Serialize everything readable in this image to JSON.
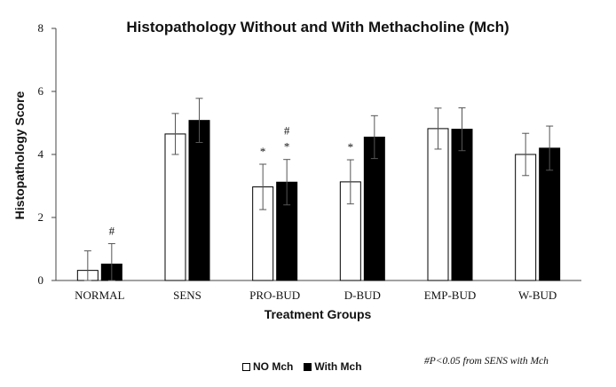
{
  "chart_data": {
    "type": "bar",
    "title": "Histopathology Without and With Methacholine (Mch)",
    "xlabel": "Treatment Groups",
    "ylabel": "Histopathology Score",
    "ylim": [
      0,
      8
    ],
    "yticks": [
      "0",
      "2",
      "4",
      "6",
      "8"
    ],
    "grid": false,
    "legend_position": "bottom",
    "categories": [
      "NORMAL",
      "SENS",
      "PRO-BUD",
      "D-BUD",
      "EMP-BUD",
      "W-BUD"
    ],
    "series": [
      {
        "name": "NO Mch",
        "color": "#ffffff",
        "values": [
          0.32,
          4.65,
          2.97,
          3.13,
          4.82,
          4.0
        ],
        "errors": [
          0.62,
          0.65,
          0.72,
          0.7,
          0.65,
          0.67
        ],
        "annotations": [
          "",
          "",
          "*",
          "*",
          "",
          ""
        ]
      },
      {
        "name": "With Mch",
        "color": "#000000",
        "values": [
          0.52,
          5.08,
          3.12,
          4.55,
          4.8,
          4.2
        ],
        "errors": [
          0.65,
          0.7,
          0.72,
          0.68,
          0.68,
          0.7
        ],
        "annotations": [
          "#",
          "",
          "#\n*",
          "",
          "",
          ""
        ]
      }
    ],
    "footnote": "#P<0.05  from SENS  with Mch"
  }
}
